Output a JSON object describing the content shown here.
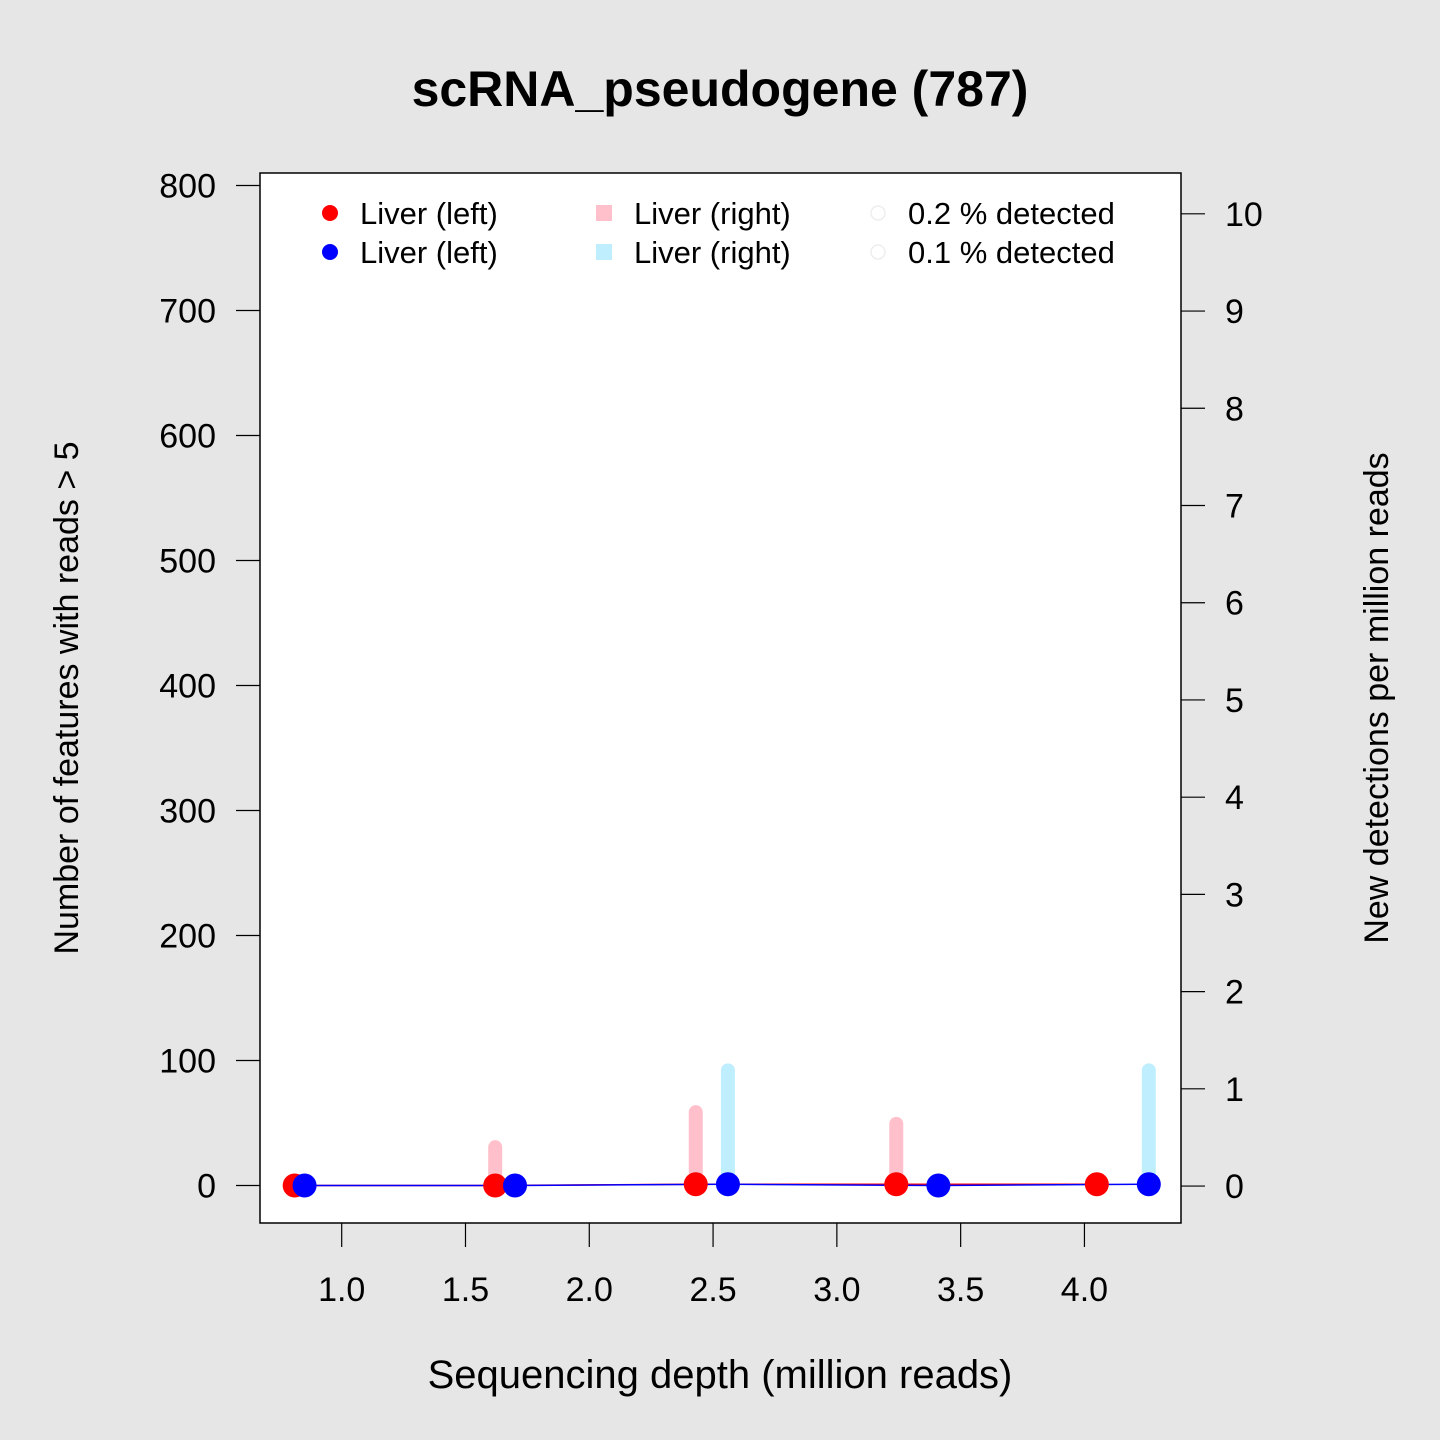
{
  "chart_data": {
    "type": "scatter",
    "title": "scRNA_pseudogene (787)",
    "xlabel": "Sequencing depth (million reads)",
    "ylabel": "Number of features with reads > 5",
    "y2label": "New detections per million reads",
    "xlim": [
      0.67,
      4.39
    ],
    "ylim": [
      -30,
      810
    ],
    "y2lim": [
      -0.38,
      10.42
    ],
    "x_ticks": [
      1.0,
      1.5,
      2.0,
      2.5,
      3.0,
      3.5,
      4.0
    ],
    "x_tick_labels": [
      "1.0",
      "1.5",
      "2.0",
      "2.5",
      "3.0",
      "3.5",
      "4.0"
    ],
    "y_ticks": [
      0,
      100,
      200,
      300,
      400,
      500,
      600,
      700,
      800
    ],
    "y_tick_labels": [
      "0",
      "100",
      "200",
      "300",
      "400",
      "500",
      "600",
      "700",
      "800"
    ],
    "y2_ticks": [
      0,
      1,
      2,
      3,
      4,
      5,
      6,
      7,
      8,
      9,
      10
    ],
    "y2_tick_labels": [
      "0",
      "1",
      "2",
      "3",
      "4",
      "5",
      "6",
      "7",
      "8",
      "9",
      "10"
    ],
    "grid": false,
    "legend_position": "top",
    "legend": [
      {
        "label": "Liver (left)",
        "color": "#ff0000",
        "marker": "circle"
      },
      {
        "label": "Liver (left)",
        "color": "#0000ff",
        "marker": "circle"
      },
      {
        "label": "Liver (right)",
        "color": "#ffc0cb",
        "marker": "square"
      },
      {
        "label": "Liver (right)",
        "color": "#bfefff",
        "marker": "square"
      },
      {
        "label": "0.2 % detected",
        "color": "#eeeeee",
        "marker": "open-circle"
      },
      {
        "label": "0.1 % detected",
        "color": "#eeeeee",
        "marker": "open-circle"
      }
    ],
    "series": [
      {
        "color": "#ff0000",
        "axis": "left",
        "kind": "points-line",
        "x": [
          0.81,
          1.62,
          2.43,
          3.24,
          4.05
        ],
        "y": [
          0,
          0,
          1,
          1,
          1
        ]
      },
      {
        "color": "#0000ff",
        "axis": "left",
        "kind": "points-line",
        "x": [
          0.85,
          1.7,
          2.56,
          3.41,
          4.26
        ],
        "y": [
          0,
          0,
          1,
          0,
          1
        ]
      },
      {
        "color": "#ffc0cb",
        "axis": "right",
        "kind": "bars",
        "x": [
          1.62,
          2.43,
          3.24
        ],
        "y": [
          0.4,
          0.76,
          0.64
        ]
      },
      {
        "color": "#bfefff",
        "axis": "right",
        "kind": "bars",
        "x": [
          2.56,
          4.26
        ],
        "y": [
          1.19,
          1.19
        ]
      }
    ]
  }
}
